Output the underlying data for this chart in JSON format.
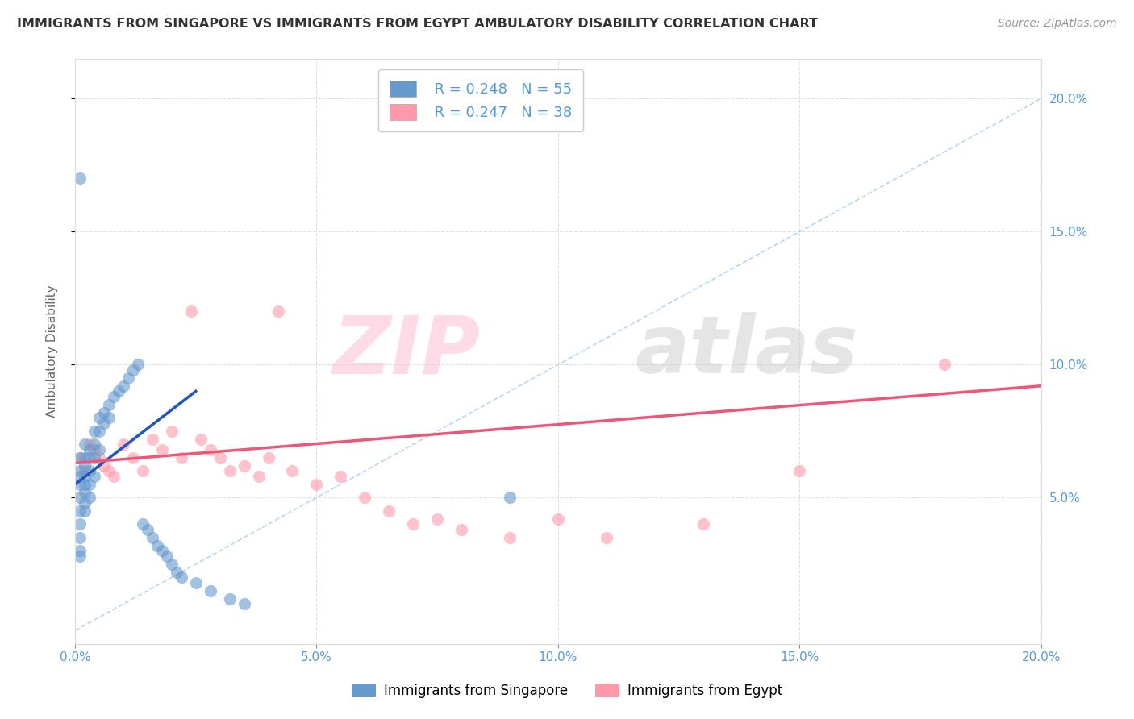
{
  "title": "IMMIGRANTS FROM SINGAPORE VS IMMIGRANTS FROM EGYPT AMBULATORY DISABILITY CORRELATION CHART",
  "source": "Source: ZipAtlas.com",
  "xlabel": "",
  "ylabel": "Ambulatory Disability",
  "xlim": [
    0.0,
    0.2
  ],
  "ylim": [
    -0.005,
    0.215
  ],
  "x_ticks": [
    0.0,
    0.05,
    0.1,
    0.15,
    0.2
  ],
  "x_tick_labels": [
    "0.0%",
    "5.0%",
    "10.0%",
    "15.0%",
    "20.0%"
  ],
  "y_ticks": [
    0.05,
    0.1,
    0.15,
    0.2
  ],
  "y_tick_labels": [
    "5.0%",
    "10.0%",
    "15.0%",
    "20.0%"
  ],
  "singapore_color": "#6699CC",
  "egypt_color": "#FF99AA",
  "singapore_label": "Immigrants from Singapore",
  "egypt_label": "Immigrants from Egypt",
  "legend_r_singapore": "R = 0.248",
  "legend_n_singapore": "N = 55",
  "legend_r_egypt": "R = 0.247",
  "legend_n_egypt": "N = 38",
  "watermark_zip": "ZIP",
  "watermark_atlas": "atlas",
  "bg_color": "#FFFFFF",
  "grid_color": "#DDDDDD",
  "title_color": "#333333",
  "axis_label_color": "#666666",
  "tick_label_color": "#5599DD",
  "diag_line_color": "#AACCEE",
  "sg_trend_color": "#2255BB",
  "eg_trend_color": "#EE5577",
  "singapore_x": [
    0.001,
    0.001,
    0.001,
    0.001,
    0.001,
    0.001,
    0.001,
    0.001,
    0.001,
    0.001,
    0.002,
    0.002,
    0.002,
    0.002,
    0.002,
    0.002,
    0.002,
    0.002,
    0.003,
    0.003,
    0.003,
    0.003,
    0.003,
    0.004,
    0.004,
    0.004,
    0.004,
    0.005,
    0.005,
    0.005,
    0.006,
    0.006,
    0.007,
    0.007,
    0.008,
    0.009,
    0.01,
    0.011,
    0.012,
    0.013,
    0.014,
    0.015,
    0.016,
    0.017,
    0.018,
    0.019,
    0.02,
    0.021,
    0.022,
    0.025,
    0.028,
    0.032,
    0.035,
    0.09,
    0.001
  ],
  "singapore_y": [
    0.06,
    0.065,
    0.055,
    0.058,
    0.05,
    0.045,
    0.04,
    0.035,
    0.03,
    0.028,
    0.062,
    0.058,
    0.055,
    0.052,
    0.048,
    0.045,
    0.07,
    0.065,
    0.068,
    0.065,
    0.06,
    0.055,
    0.05,
    0.075,
    0.07,
    0.065,
    0.058,
    0.08,
    0.075,
    0.068,
    0.082,
    0.078,
    0.085,
    0.08,
    0.088,
    0.09,
    0.092,
    0.095,
    0.098,
    0.1,
    0.04,
    0.038,
    0.035,
    0.032,
    0.03,
    0.028,
    0.025,
    0.022,
    0.02,
    0.018,
    0.015,
    0.012,
    0.01,
    0.05,
    0.17
  ],
  "egypt_x": [
    0.001,
    0.002,
    0.003,
    0.004,
    0.005,
    0.006,
    0.007,
    0.008,
    0.01,
    0.012,
    0.014,
    0.016,
    0.018,
    0.02,
    0.022,
    0.024,
    0.026,
    0.028,
    0.03,
    0.032,
    0.035,
    0.038,
    0.04,
    0.042,
    0.045,
    0.05,
    0.055,
    0.06,
    0.065,
    0.07,
    0.075,
    0.08,
    0.09,
    0.1,
    0.11,
    0.13,
    0.15,
    0.18
  ],
  "egypt_y": [
    0.065,
    0.06,
    0.07,
    0.068,
    0.065,
    0.062,
    0.06,
    0.058,
    0.07,
    0.065,
    0.06,
    0.072,
    0.068,
    0.075,
    0.065,
    0.12,
    0.072,
    0.068,
    0.065,
    0.06,
    0.062,
    0.058,
    0.065,
    0.12,
    0.06,
    0.055,
    0.058,
    0.05,
    0.045,
    0.04,
    0.042,
    0.038,
    0.035,
    0.042,
    0.035,
    0.04,
    0.06,
    0.1
  ],
  "sg_trend_x": [
    0.0,
    0.025
  ],
  "sg_trend_y": [
    0.055,
    0.09
  ],
  "eg_trend_x": [
    0.0,
    0.2
  ],
  "eg_trend_y": [
    0.063,
    0.092
  ]
}
